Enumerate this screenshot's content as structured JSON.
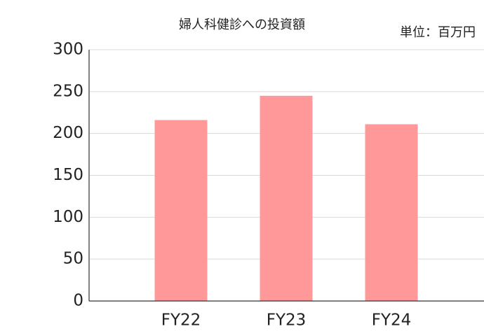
{
  "chart_data": {
    "type": "bar",
    "title": "婦人科健診への投資額",
    "unit": "単位：百万円",
    "categories": [
      "FY22",
      "FY23",
      "FY24"
    ],
    "values": [
      216,
      245,
      211
    ],
    "color": "#ff9999",
    "ylim": [
      0,
      300
    ],
    "yticks": [
      0,
      50,
      100,
      150,
      200,
      250,
      300
    ],
    "grid": true
  }
}
